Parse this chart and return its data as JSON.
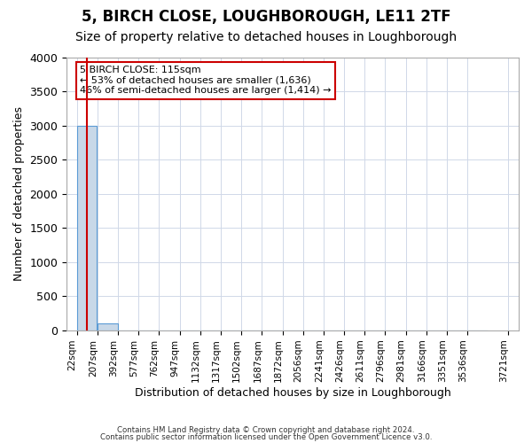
{
  "title": "5, BIRCH CLOSE, LOUGHBOROUGH, LE11 2TF",
  "subtitle": "Size of property relative to detached houses in Loughborough",
  "xlabel": "Distribution of detached houses by size in Loughborough",
  "ylabel": "Number of detached properties",
  "footer1": "Contains HM Land Registry data © Crown copyright and database right 2024.",
  "footer2": "Contains public sector information licensed under the Open Government Licence v3.0.",
  "bar_color": "#c8d8e8",
  "bar_edge_color": "#5b9bd5",
  "annotation_line_color": "#cc0000",
  "annotation_box_color": "#cc0000",
  "annotation_text": "5 BIRCH CLOSE: 115sqm\n← 53% of detached houses are smaller (1,636)\n46% of semi-detached houses are larger (1,414) →",
  "property_size": 115,
  "bins": [
    22,
    207,
    392,
    577,
    762,
    947,
    1132,
    1317,
    1502,
    1687,
    1872,
    2056,
    2241,
    2426,
    2611,
    2796,
    2981,
    3166,
    3351,
    3536,
    3721
  ],
  "bin_labels": [
    "22sqm",
    "207sqm",
    "392sqm",
    "577sqm",
    "762sqm",
    "947sqm",
    "1132sqm",
    "1317sqm",
    "1502sqm",
    "1687sqm",
    "1872sqm",
    "2056sqm",
    "2241sqm",
    "2426sqm",
    "2611sqm",
    "2796sqm",
    "2981sqm",
    "3166sqm",
    "3351sqm",
    "3536sqm",
    "3721sqm"
  ],
  "counts": [
    3000,
    110,
    5,
    3,
    2,
    1,
    1,
    1,
    1,
    0,
    1,
    0,
    0,
    0,
    0,
    0,
    0,
    0,
    0,
    0
  ],
  "ylim": [
    0,
    4000
  ],
  "yticks": [
    0,
    500,
    1000,
    1500,
    2000,
    2500,
    3000,
    3500,
    4000
  ],
  "grid_color": "#d0d8e8",
  "background_color": "#ffffff",
  "title_fontsize": 12,
  "subtitle_fontsize": 10
}
